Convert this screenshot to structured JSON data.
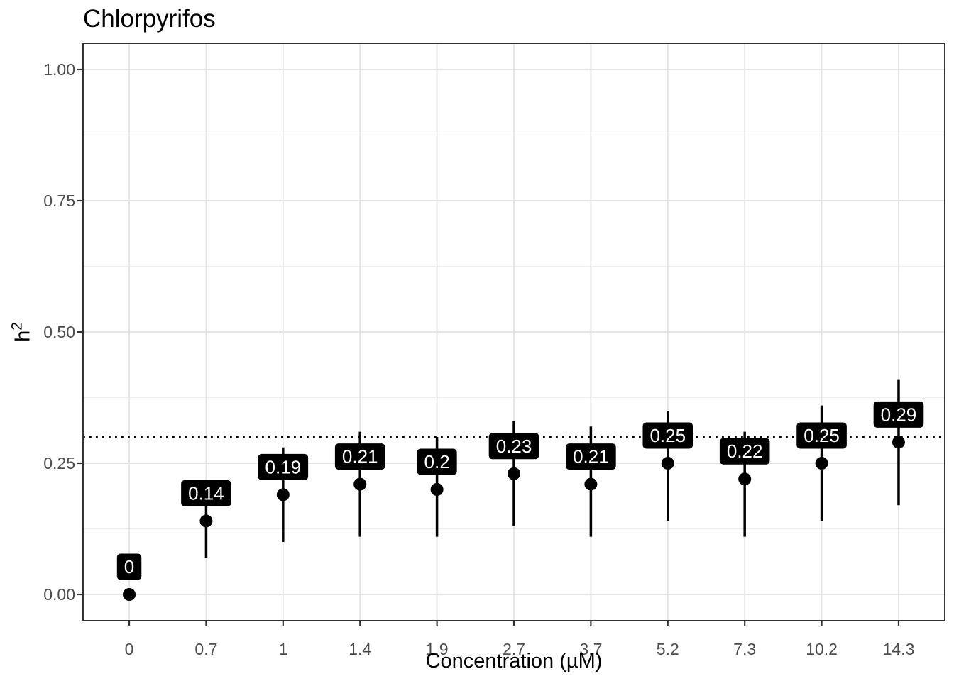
{
  "chart_data": {
    "type": "scatter",
    "subtype": "pointrange",
    "title": "Chlorpyrifos",
    "xlabel": "Concentration (µM)",
    "ylabel": "h²",
    "ylabel_parts": {
      "base": "h",
      "sup": "2"
    },
    "x_categories": [
      "0",
      "0.7",
      "1",
      "1.4",
      "1.9",
      "2.7",
      "3.7",
      "5.2",
      "7.3",
      "10.2",
      "14.3"
    ],
    "points": [
      {
        "x": "0",
        "y": 0.0,
        "ymin": 0.0,
        "ymax": 0.0,
        "label": "0"
      },
      {
        "x": "0.7",
        "y": 0.14,
        "ymin": 0.07,
        "ymax": 0.21,
        "label": "0.14"
      },
      {
        "x": "1",
        "y": 0.19,
        "ymin": 0.1,
        "ymax": 0.28,
        "label": "0.19"
      },
      {
        "x": "1.4",
        "y": 0.21,
        "ymin": 0.11,
        "ymax": 0.31,
        "label": "0.21"
      },
      {
        "x": "1.9",
        "y": 0.2,
        "ymin": 0.11,
        "ymax": 0.3,
        "label": "0.2"
      },
      {
        "x": "2.7",
        "y": 0.23,
        "ymin": 0.13,
        "ymax": 0.33,
        "label": "0.23"
      },
      {
        "x": "3.7",
        "y": 0.21,
        "ymin": 0.11,
        "ymax": 0.32,
        "label": "0.21"
      },
      {
        "x": "5.2",
        "y": 0.25,
        "ymin": 0.14,
        "ymax": 0.35,
        "label": "0.25"
      },
      {
        "x": "7.3",
        "y": 0.22,
        "ymin": 0.11,
        "ymax": 0.31,
        "label": "0.22"
      },
      {
        "x": "10.2",
        "y": 0.25,
        "ymin": 0.14,
        "ymax": 0.36,
        "label": "0.25"
      },
      {
        "x": "14.3",
        "y": 0.29,
        "ymin": 0.17,
        "ymax": 0.41,
        "label": "0.29"
      }
    ],
    "y_ticks": [
      {
        "label": "0.00",
        "value": 0.0
      },
      {
        "label": "0.25",
        "value": 0.25
      },
      {
        "label": "0.50",
        "value": 0.5
      },
      {
        "label": "0.75",
        "value": 0.75
      },
      {
        "label": "1.00",
        "value": 1.0
      }
    ],
    "ylim": [
      -0.05,
      1.05
    ],
    "reference_line": {
      "y": 0.3,
      "linetype": "dotted",
      "color": "#000000"
    },
    "grid": {
      "major": true,
      "minor_y": true,
      "legend_position": "none"
    },
    "colors": {
      "point": "#000000",
      "error_bar": "#000000",
      "label_bg": "#000000",
      "label_text": "#ffffff",
      "grid_major": "#e3e3e3",
      "grid_minor": "#eeeeee",
      "panel_border": "#333333",
      "tick_mark": "#333333",
      "tick_text": "#4d4d4d",
      "background": "#ffffff"
    }
  }
}
